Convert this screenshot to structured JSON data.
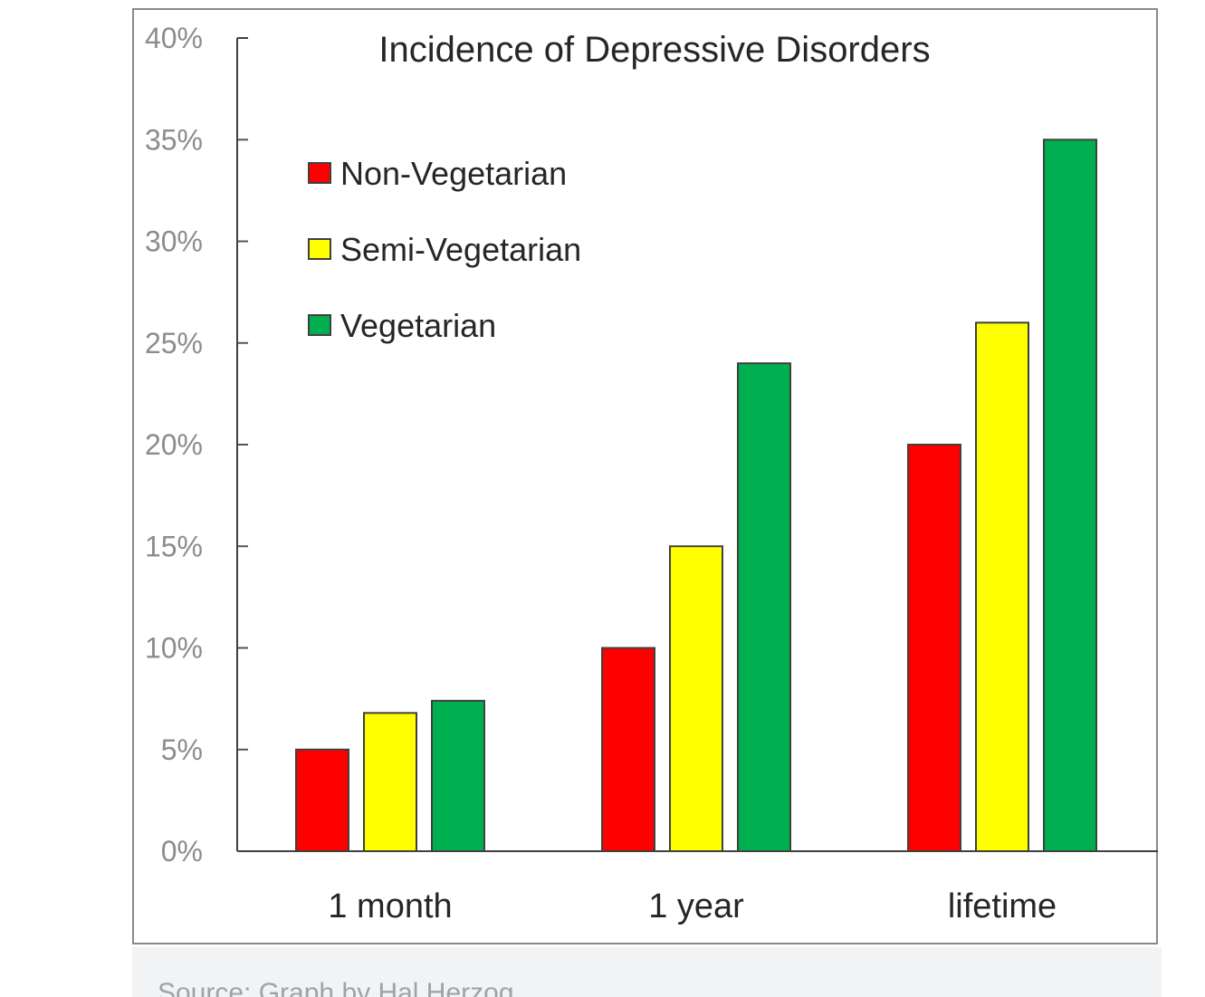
{
  "chart_data": {
    "type": "bar",
    "title": "Incidence of Depressive Disorders",
    "categories": [
      "1 month",
      "1 year",
      "lifetime"
    ],
    "series": [
      {
        "name": "Non-Vegetarian",
        "color": "#ff0000",
        "values": [
          5,
          10,
          20
        ]
      },
      {
        "name": "Semi-Vegetarian",
        "color": "#ffff00",
        "values": [
          6.8,
          15,
          26
        ]
      },
      {
        "name": "Vegetarian",
        "color": "#00b050",
        "values": [
          7.4,
          24,
          35
        ]
      }
    ],
    "yticks": [
      "0%",
      "5%",
      "10%",
      "15%",
      "20%",
      "25%",
      "30%",
      "35%",
      "40%"
    ],
    "ylim": [
      0,
      40
    ],
    "xlabel": "",
    "ylabel": "",
    "legend": "top-left",
    "grid": false
  },
  "caption": {
    "text": "Source: Graph by Hal Herzog"
  }
}
